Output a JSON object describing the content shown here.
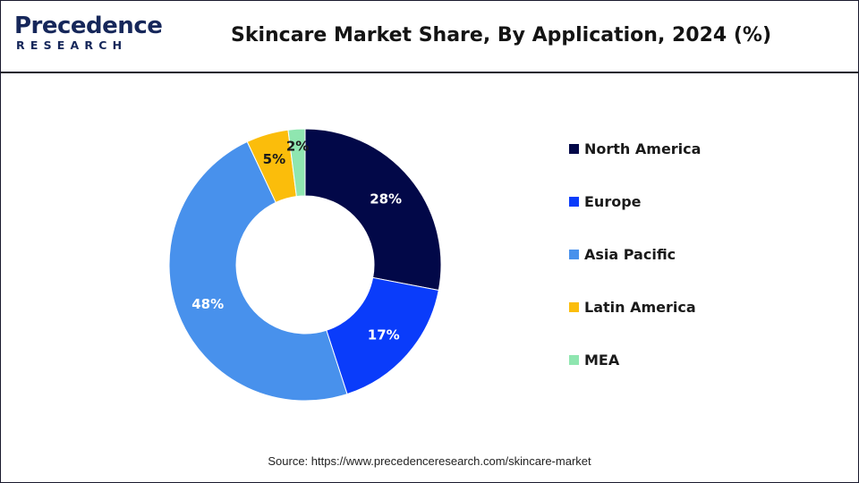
{
  "header": {
    "logo_top": "Precedence",
    "logo_bottom": "RESEARCH",
    "title": "Skincare Market Share, By Application, 2024 (%)"
  },
  "chart_data": {
    "type": "pie",
    "title": "Skincare Market Share, By Application, 2024 (%)",
    "donut": true,
    "legend_position": "right",
    "categories": [
      "North America",
      "Europe",
      "Asia Pacific",
      "Latin America",
      "MEA"
    ],
    "values": [
      28,
      17,
      48,
      5,
      2
    ],
    "labels": [
      "28%",
      "17%",
      "48%",
      "5%",
      "2%"
    ],
    "colors": [
      "#020848",
      "#0a3cfa",
      "#4891ec",
      "#fbbd0b",
      "#8fe6b0"
    ],
    "label_colors": [
      "#ffffff",
      "#ffffff",
      "#ffffff",
      "#1a1a1a",
      "#1a1a1a"
    ]
  },
  "footer": {
    "source": "Source: https://www.precedenceresearch.com/skincare-market"
  }
}
